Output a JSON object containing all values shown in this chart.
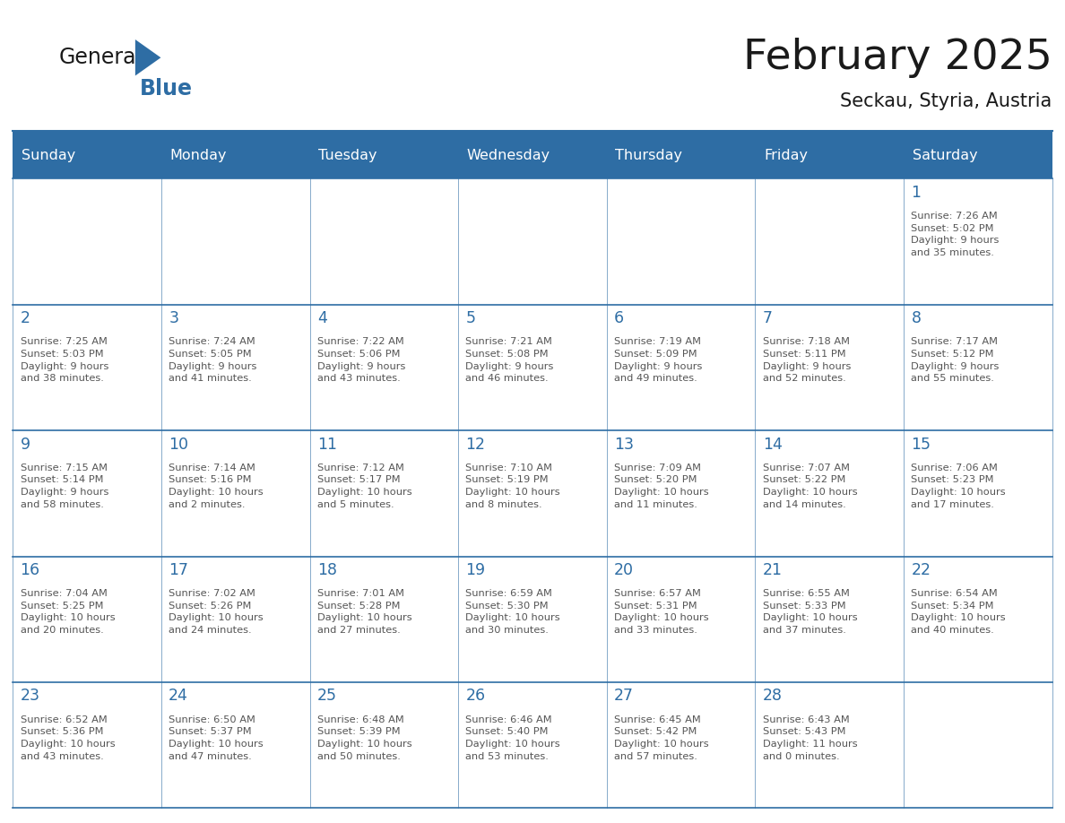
{
  "title": "February 2025",
  "subtitle": "Seckau, Styria, Austria",
  "days_of_week": [
    "Sunday",
    "Monday",
    "Tuesday",
    "Wednesday",
    "Thursday",
    "Friday",
    "Saturday"
  ],
  "header_bg": "#2E6DA4",
  "header_text": "#FFFFFF",
  "cell_bg": "#FFFFFF",
  "text_color": "#555555",
  "day_num_color": "#2E6DA4",
  "border_color": "#2E6DA4",
  "title_color": "#1A1A1A",
  "logo_color_general": "#1A1A1A",
  "logo_color_blue": "#2E6DA4",
  "logo_triangle_color": "#2E6DA4",
  "calendar": [
    [
      {
        "day": null,
        "info": ""
      },
      {
        "day": null,
        "info": ""
      },
      {
        "day": null,
        "info": ""
      },
      {
        "day": null,
        "info": ""
      },
      {
        "day": null,
        "info": ""
      },
      {
        "day": null,
        "info": ""
      },
      {
        "day": 1,
        "info": "Sunrise: 7:26 AM\nSunset: 5:02 PM\nDaylight: 9 hours\nand 35 minutes."
      }
    ],
    [
      {
        "day": 2,
        "info": "Sunrise: 7:25 AM\nSunset: 5:03 PM\nDaylight: 9 hours\nand 38 minutes."
      },
      {
        "day": 3,
        "info": "Sunrise: 7:24 AM\nSunset: 5:05 PM\nDaylight: 9 hours\nand 41 minutes."
      },
      {
        "day": 4,
        "info": "Sunrise: 7:22 AM\nSunset: 5:06 PM\nDaylight: 9 hours\nand 43 minutes."
      },
      {
        "day": 5,
        "info": "Sunrise: 7:21 AM\nSunset: 5:08 PM\nDaylight: 9 hours\nand 46 minutes."
      },
      {
        "day": 6,
        "info": "Sunrise: 7:19 AM\nSunset: 5:09 PM\nDaylight: 9 hours\nand 49 minutes."
      },
      {
        "day": 7,
        "info": "Sunrise: 7:18 AM\nSunset: 5:11 PM\nDaylight: 9 hours\nand 52 minutes."
      },
      {
        "day": 8,
        "info": "Sunrise: 7:17 AM\nSunset: 5:12 PM\nDaylight: 9 hours\nand 55 minutes."
      }
    ],
    [
      {
        "day": 9,
        "info": "Sunrise: 7:15 AM\nSunset: 5:14 PM\nDaylight: 9 hours\nand 58 minutes."
      },
      {
        "day": 10,
        "info": "Sunrise: 7:14 AM\nSunset: 5:16 PM\nDaylight: 10 hours\nand 2 minutes."
      },
      {
        "day": 11,
        "info": "Sunrise: 7:12 AM\nSunset: 5:17 PM\nDaylight: 10 hours\nand 5 minutes."
      },
      {
        "day": 12,
        "info": "Sunrise: 7:10 AM\nSunset: 5:19 PM\nDaylight: 10 hours\nand 8 minutes."
      },
      {
        "day": 13,
        "info": "Sunrise: 7:09 AM\nSunset: 5:20 PM\nDaylight: 10 hours\nand 11 minutes."
      },
      {
        "day": 14,
        "info": "Sunrise: 7:07 AM\nSunset: 5:22 PM\nDaylight: 10 hours\nand 14 minutes."
      },
      {
        "day": 15,
        "info": "Sunrise: 7:06 AM\nSunset: 5:23 PM\nDaylight: 10 hours\nand 17 minutes."
      }
    ],
    [
      {
        "day": 16,
        "info": "Sunrise: 7:04 AM\nSunset: 5:25 PM\nDaylight: 10 hours\nand 20 minutes."
      },
      {
        "day": 17,
        "info": "Sunrise: 7:02 AM\nSunset: 5:26 PM\nDaylight: 10 hours\nand 24 minutes."
      },
      {
        "day": 18,
        "info": "Sunrise: 7:01 AM\nSunset: 5:28 PM\nDaylight: 10 hours\nand 27 minutes."
      },
      {
        "day": 19,
        "info": "Sunrise: 6:59 AM\nSunset: 5:30 PM\nDaylight: 10 hours\nand 30 minutes."
      },
      {
        "day": 20,
        "info": "Sunrise: 6:57 AM\nSunset: 5:31 PM\nDaylight: 10 hours\nand 33 minutes."
      },
      {
        "day": 21,
        "info": "Sunrise: 6:55 AM\nSunset: 5:33 PM\nDaylight: 10 hours\nand 37 minutes."
      },
      {
        "day": 22,
        "info": "Sunrise: 6:54 AM\nSunset: 5:34 PM\nDaylight: 10 hours\nand 40 minutes."
      }
    ],
    [
      {
        "day": 23,
        "info": "Sunrise: 6:52 AM\nSunset: 5:36 PM\nDaylight: 10 hours\nand 43 minutes."
      },
      {
        "day": 24,
        "info": "Sunrise: 6:50 AM\nSunset: 5:37 PM\nDaylight: 10 hours\nand 47 minutes."
      },
      {
        "day": 25,
        "info": "Sunrise: 6:48 AM\nSunset: 5:39 PM\nDaylight: 10 hours\nand 50 minutes."
      },
      {
        "day": 26,
        "info": "Sunrise: 6:46 AM\nSunset: 5:40 PM\nDaylight: 10 hours\nand 53 minutes."
      },
      {
        "day": 27,
        "info": "Sunrise: 6:45 AM\nSunset: 5:42 PM\nDaylight: 10 hours\nand 57 minutes."
      },
      {
        "day": 28,
        "info": "Sunrise: 6:43 AM\nSunset: 5:43 PM\nDaylight: 11 hours\nand 0 minutes."
      },
      {
        "day": null,
        "info": ""
      }
    ]
  ]
}
